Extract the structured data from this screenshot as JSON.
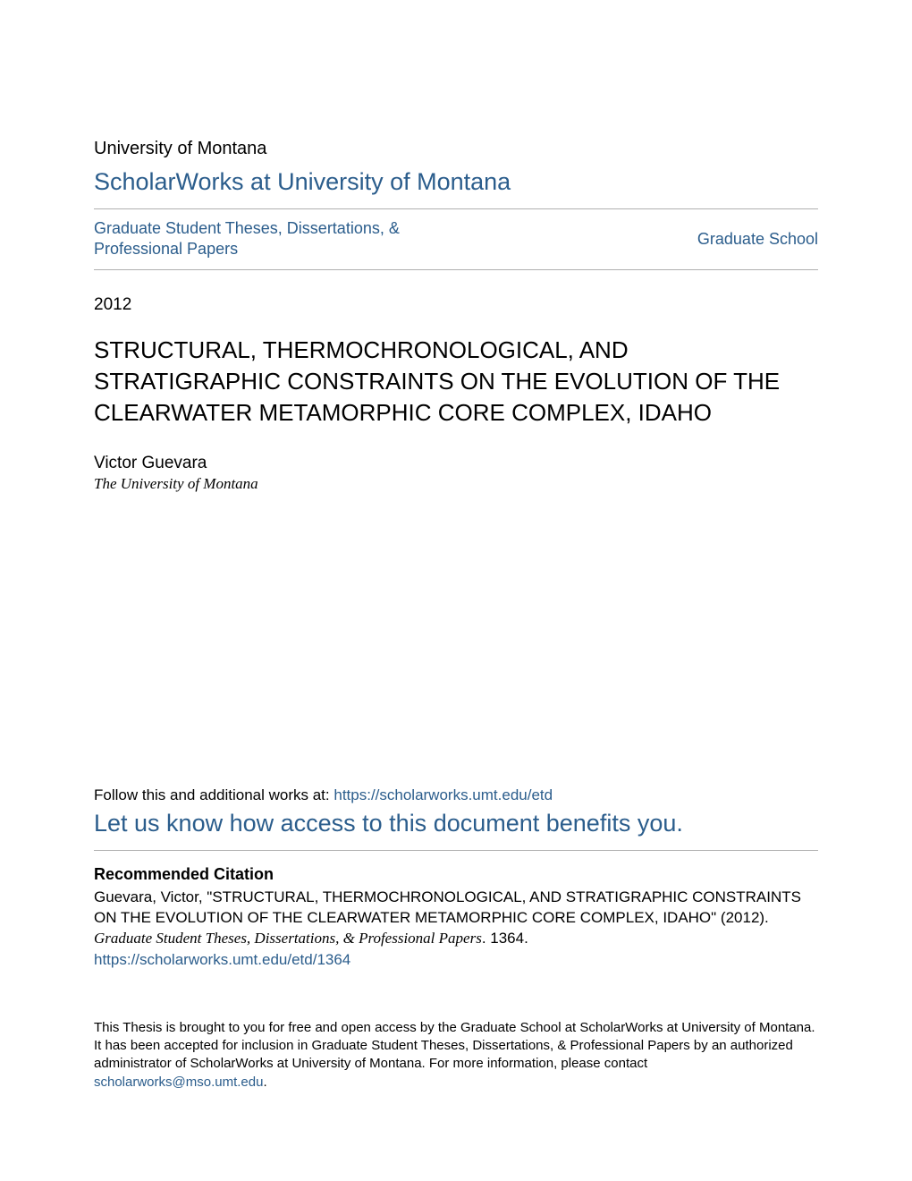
{
  "header": {
    "university": "University of Montana",
    "repository": "ScholarWorks at University of Montana",
    "collection_link": "Graduate Student Theses, Dissertations, & Professional Papers",
    "school_link": "Graduate School"
  },
  "document": {
    "year": "2012",
    "title": "STRUCTURAL, THERMOCHRONOLOGICAL, AND STRATIGRAPHIC CONSTRAINTS ON THE EVOLUTION OF THE CLEARWATER METAMORPHIC CORE COMPLEX, IDAHO",
    "author": "Victor Guevara",
    "affiliation": "The University of Montana"
  },
  "follow": {
    "prefix": "Follow this and additional works at: ",
    "url": "https://scholarworks.umt.edu/etd",
    "benefits": "Let us know how access to this document benefits you."
  },
  "citation": {
    "header": "Recommended Citation",
    "author_part": "Guevara, Victor, \"STRUCTURAL, THERMOCHRONOLOGICAL, AND STRATIGRAPHIC CONSTRAINTS ON THE EVOLUTION OF THE CLEARWATER METAMORPHIC CORE COMPLEX, IDAHO\" (2012). ",
    "series_part": "Graduate Student Theses, Dissertations, & Professional Papers",
    "number_part": ". 1364.",
    "url": "https://scholarworks.umt.edu/etd/1364"
  },
  "footer": {
    "text_before": "This Thesis is brought to you for free and open access by the Graduate School at ScholarWorks at University of Montana. It has been accepted for inclusion in Graduate Student Theses, Dissertations, & Professional Papers by an authorized administrator of ScholarWorks at University of Montana. For more information, please contact ",
    "email": "scholarworks@mso.umt.edu",
    "text_after": "."
  },
  "colors": {
    "link": "#2b5d8c",
    "text": "#000000",
    "rule": "#b0b0b0",
    "background": "#ffffff"
  }
}
